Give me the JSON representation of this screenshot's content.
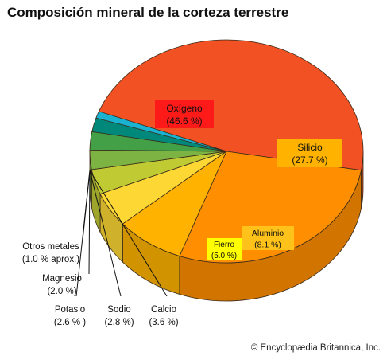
{
  "title": "Composición mineral de la corteza terrestre",
  "credit": "© Encyclopædia Britannica, Inc.",
  "chart_data": {
    "type": "pie",
    "title": "Composición mineral de la corteza terrestre",
    "slices": [
      {
        "name": "Oxígeno",
        "value_label": "(46.6 %)",
        "value": 46.6,
        "color": "#f25223"
      },
      {
        "name": "Silicio",
        "value_label": "(27.7 %)",
        "value": 27.7,
        "color": "#ff8f00"
      },
      {
        "name": "Aluminio",
        "value_label": "(8.1 %)",
        "value": 8.1,
        "color": "#ffb300"
      },
      {
        "name": "Fierro",
        "value_label": "(5.0 %)",
        "value": 5.0,
        "color": "#fdd835"
      },
      {
        "name": "Calcio",
        "value_label": "(3.6 %)",
        "value": 3.6,
        "color": "#c0ca33"
      },
      {
        "name": "Sodio",
        "value_label": "(2.8 %)",
        "value": 2.8,
        "color": "#7cb342"
      },
      {
        "name": "Potasio",
        "value_label": "(2.6 % )",
        "value": 2.6,
        "color": "#43a047"
      },
      {
        "name": "Magnesio",
        "value_label": "(2.0 %)",
        "value": 2.0,
        "color": "#00897b"
      },
      {
        "name": "Otros metales",
        "value_label": "(1.0 % aprox.)",
        "value": 1.0,
        "color": "#1ab2d1"
      }
    ]
  }
}
